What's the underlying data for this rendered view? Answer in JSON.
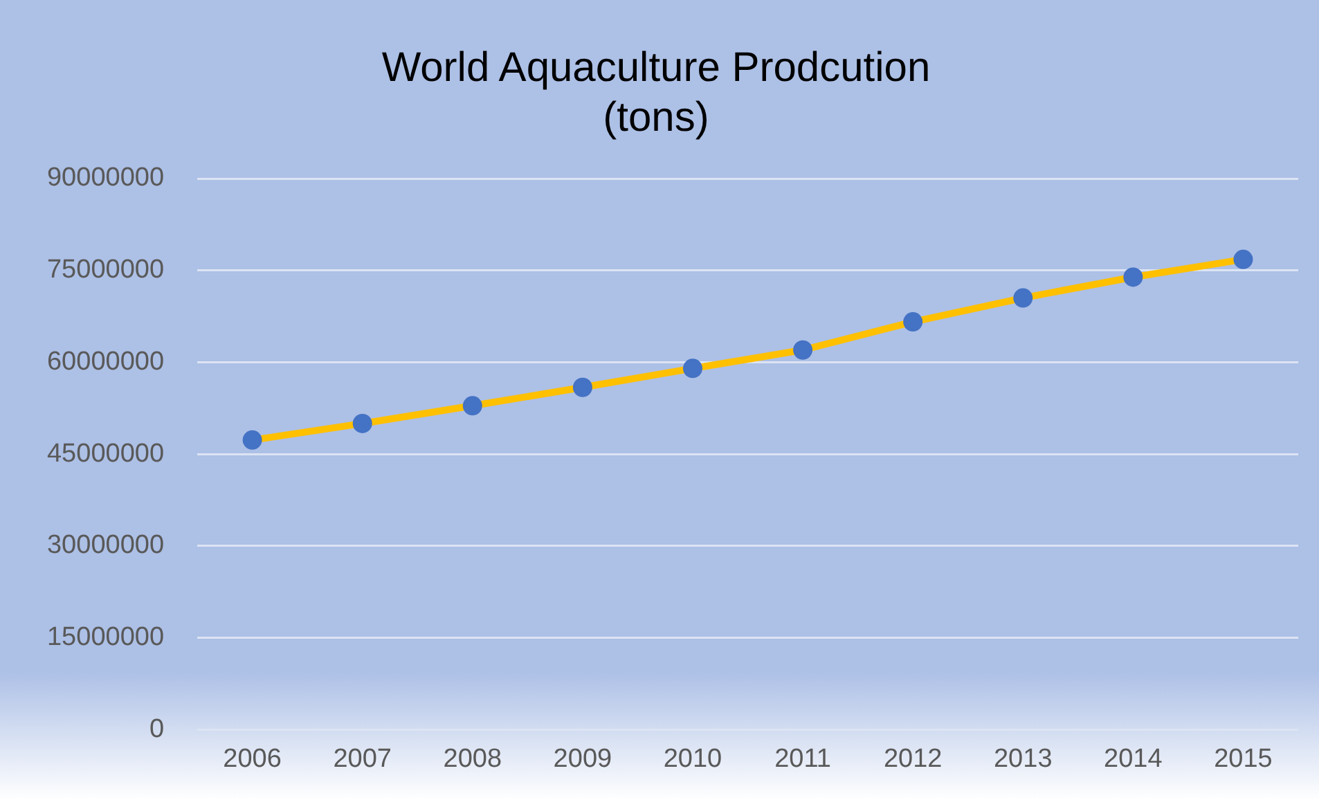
{
  "chart_data": {
    "type": "line",
    "title": "World Aquaculture Prodcution\n(tons)",
    "categories": [
      "2006",
      "2007",
      "2008",
      "2009",
      "2010",
      "2011",
      "2012",
      "2013",
      "2014",
      "2015"
    ],
    "series": [
      {
        "color": "#ffc000",
        "values": [
          47300000,
          50000000,
          52900000,
          55900000,
          59000000,
          62000000,
          66600000,
          70500000,
          73900000,
          76800000
        ]
      }
    ],
    "marker": "circle",
    "ylim": [
      0,
      90000000
    ],
    "yticks": [
      0,
      15000000,
      30000000,
      45000000,
      60000000,
      75000000,
      90000000
    ],
    "grid": "y",
    "legend": false
  }
}
